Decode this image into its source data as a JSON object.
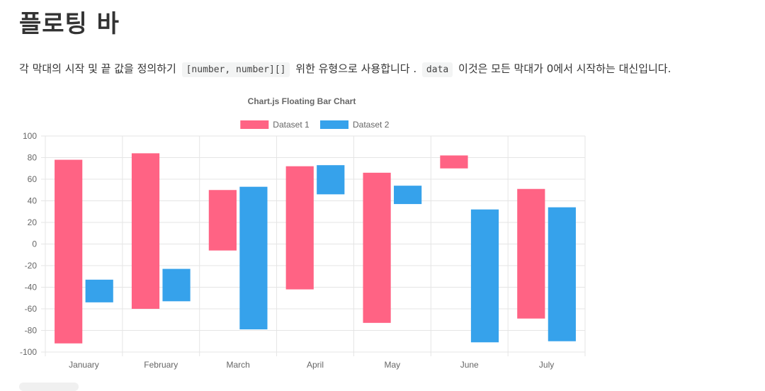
{
  "page": {
    "title": "플로팅 바",
    "description": {
      "part1": "각 막대의 시작 및 끝 값을 정의하기",
      "code1": "[number, number][]",
      "part2": "위한 유형으로 사용합니다 .",
      "code2": "data",
      "part3": "이것은 모든 막대가 0에서 시작하는 대신입니다."
    }
  },
  "colors": {
    "dataset1": "#ff6384",
    "dataset2": "#36a2eb",
    "grid": "#e5e5e5",
    "text": "#666666"
  },
  "chart_data": {
    "type": "bar",
    "title": "Chart.js Floating Bar Chart",
    "categories": [
      "January",
      "February",
      "March",
      "April",
      "May",
      "June",
      "July"
    ],
    "ylim": [
      -100,
      100
    ],
    "yticks": [
      100,
      80,
      60,
      40,
      20,
      0,
      -20,
      -40,
      -60,
      -80,
      -100
    ],
    "grid": true,
    "legend_position": "top",
    "series": [
      {
        "name": "Dataset 1",
        "color": "#ff6384",
        "values": [
          [
            -92,
            78
          ],
          [
            -60,
            84
          ],
          [
            -6,
            50
          ],
          [
            -42,
            72
          ],
          [
            -73,
            66
          ],
          [
            70,
            82
          ],
          [
            -69,
            51
          ]
        ]
      },
      {
        "name": "Dataset 2",
        "color": "#36a2eb",
        "values": [
          [
            -54,
            -33
          ],
          [
            -53,
            -23
          ],
          [
            -79,
            53
          ],
          [
            46,
            73
          ],
          [
            37,
            54
          ],
          [
            -91,
            32
          ],
          [
            -90,
            34
          ]
        ]
      }
    ]
  }
}
